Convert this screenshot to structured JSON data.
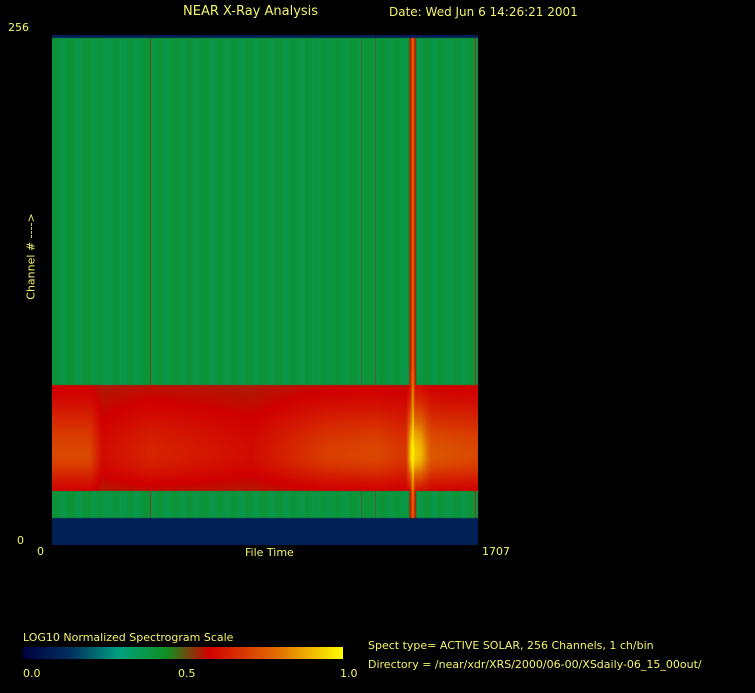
{
  "header": {
    "title": "NEAR X-Ray Analysis",
    "date": "Date: Wed Jun  6 14:26:21 2001"
  },
  "chart_data": {
    "type": "heatmap",
    "xlabel": "File Time",
    "ylabel": "Channel # ---->",
    "xlim": [
      0,
      1707
    ],
    "ylim": [
      0,
      256
    ],
    "x_ticks": [
      "0",
      "1707"
    ],
    "y_ticks": [
      "0",
      "256"
    ],
    "background_level": 0.4,
    "emission_band_channels": [
      28,
      78
    ],
    "band_peak_channel": 45,
    "band_intensity_by_time": [
      [
        0,
        0.72
      ],
      [
        150,
        0.72
      ],
      [
        200,
        0.6
      ],
      [
        393,
        0.65
      ],
      [
        800,
        0.6
      ],
      [
        1100,
        0.7
      ],
      [
        1300,
        0.72
      ],
      [
        1420,
        0.68
      ],
      [
        1440,
        0.95
      ],
      [
        1480,
        0.9
      ],
      [
        1520,
        0.75
      ],
      [
        1707,
        0.72
      ]
    ],
    "events": [
      {
        "file_time": 393,
        "intensity": 0.62
      },
      {
        "file_time": 841,
        "intensity": 0.55
      },
      {
        "file_time": 1126,
        "intensity": 0.55
      },
      {
        "file_time": 1242,
        "intensity": 0.6
      },
      {
        "file_time": 1298,
        "intensity": 0.58
      },
      {
        "file_time": 1447,
        "intensity": 0.95
      },
      {
        "file_time": 1699,
        "intensity": 0.62
      }
    ],
    "colorbar": {
      "title": "LOG10 Normalized Spectrogram Scale",
      "ticks": [
        "0.0",
        "0.5",
        "1.0"
      ],
      "stops": [
        [
          0,
          "#000040"
        ],
        [
          0.15,
          "#003060"
        ],
        [
          0.3,
          "#00a080"
        ],
        [
          0.45,
          "#109020"
        ],
        [
          0.58,
          "#d00000"
        ],
        [
          0.8,
          "#e07000"
        ],
        [
          1,
          "#ffff00"
        ]
      ]
    }
  },
  "info": {
    "spect_type": "Spect type= ACTIVE SOLAR,  256 Channels,       1 ch/bin",
    "directory": "Directory = /near/xdr/XRS/2000/06-00/XSdaily-06_15_00out/"
  }
}
